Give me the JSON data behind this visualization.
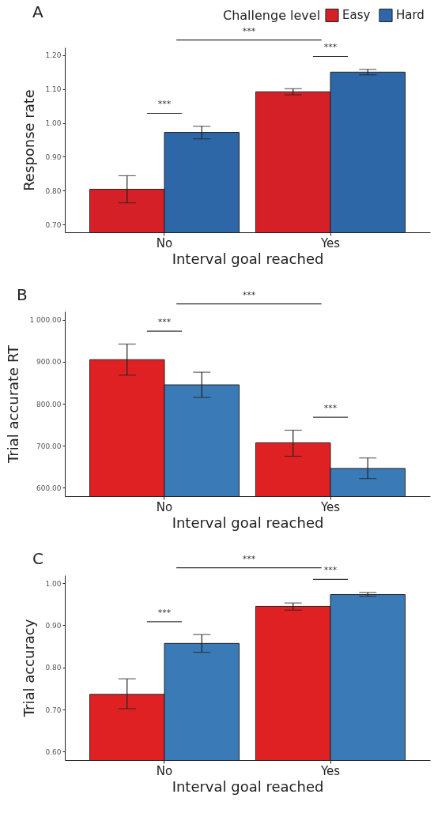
{
  "chart_data": [
    {
      "type": "bar",
      "title": "A",
      "categories": [
        "No",
        "Yes"
      ],
      "xlabel": "Interval goal reached",
      "ylabel": "Response rate",
      "legend_title": "Challenge level",
      "legend": "top right",
      "ylim": [
        0.677,
        1.223
      ],
      "yticks": [
        {
          "value": 0.7,
          "label": "0.70"
        },
        {
          "value": 0.8,
          "label": "0.80"
        },
        {
          "value": 0.9,
          "label": "0.90"
        },
        {
          "value": 1.0,
          "label": "1.00"
        },
        {
          "value": 1.1,
          "label": "1.10"
        },
        {
          "value": 1.2,
          "label": "1.20"
        }
      ],
      "series": [
        {
          "name": "Easy",
          "color": "#d62027",
          "values": [
            0.804,
            1.092
          ],
          "errors": [
            [
              0.764,
              0.844
            ],
            [
              1.083,
              1.101
            ]
          ]
        },
        {
          "name": "Hard",
          "color": "#2e67a8",
          "values": [
            0.972,
            1.15
          ],
          "errors": [
            [
              0.953,
              0.99
            ],
            [
              1.142,
              1.158
            ]
          ]
        }
      ],
      "annotations": [
        "***",
        "***",
        "***"
      ]
    },
    {
      "type": "bar",
      "title": "B",
      "categories": [
        "No",
        "Yes"
      ],
      "xlabel": "Interval goal reached",
      "ylabel": "Trial accurate RT",
      "ylim": [
        580,
        1020
      ],
      "yticks": [
        {
          "value": 600,
          "label": "600.00"
        },
        {
          "value": 700,
          "label": "700.00"
        },
        {
          "value": 800,
          "label": "800.00"
        },
        {
          "value": 900,
          "label": "900.00"
        },
        {
          "value": 1000,
          "label": "1 000.00"
        }
      ],
      "series": [
        {
          "color": "#e02124",
          "values": [
            905,
            707
          ],
          "errors": [
            [
              868,
              942
            ],
            [
              675,
              737
            ]
          ]
        },
        {
          "color": "#3a7ab6",
          "values": [
            845,
            646
          ],
          "errors": [
            [
              815,
              875
            ],
            [
              622,
              671
            ]
          ]
        }
      ],
      "annotations": [
        "***",
        "***",
        "***"
      ]
    },
    {
      "type": "bar",
      "title": "C",
      "categories": [
        "No",
        "Yes"
      ],
      "xlabel": "Interval goal reached",
      "ylabel": "Trial accuracy",
      "ylim": [
        0.58,
        1.019
      ],
      "yticks": [
        {
          "value": 0.6,
          "label": "0.60"
        },
        {
          "value": 0.7,
          "label": "0.70"
        },
        {
          "value": 0.8,
          "label": "0.80"
        },
        {
          "value": 0.9,
          "label": "0.90"
        },
        {
          "value": 1.0,
          "label": "1.00"
        }
      ],
      "series": [
        {
          "color": "#e02124",
          "values": [
            0.736,
            0.945
          ],
          "errors": [
            [
              0.702,
              0.773
            ],
            [
              0.936,
              0.953
            ]
          ]
        },
        {
          "color": "#3a7ab6",
          "values": [
            0.857,
            0.973
          ],
          "errors": [
            [
              0.836,
              0.878
            ],
            [
              0.969,
              0.978
            ]
          ]
        }
      ],
      "annotations": [
        "***",
        "***",
        "***"
      ]
    }
  ]
}
